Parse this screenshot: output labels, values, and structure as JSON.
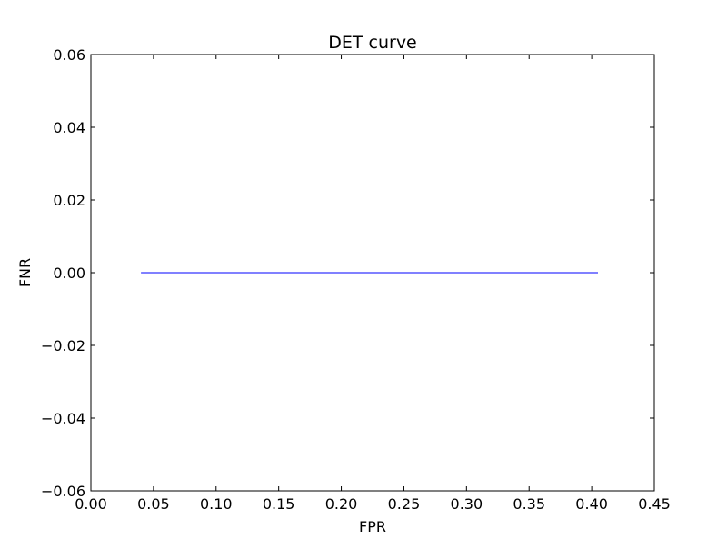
{
  "chart_data": {
    "type": "line",
    "title": "DET curve",
    "xlabel": "FPR",
    "ylabel": "FNR",
    "xlim": [
      0.0,
      0.45
    ],
    "ylim": [
      -0.06,
      0.06
    ],
    "xticks": [
      0.0,
      0.05,
      0.1,
      0.15,
      0.2,
      0.25,
      0.3,
      0.35,
      0.4,
      0.45
    ],
    "yticks": [
      -0.06,
      -0.04,
      -0.02,
      0.0,
      0.02,
      0.04,
      0.06
    ],
    "xtick_labels": [
      "0.00",
      "0.05",
      "0.10",
      "0.15",
      "0.20",
      "0.25",
      "0.30",
      "0.35",
      "0.40",
      "0.45"
    ],
    "ytick_labels": [
      "−0.06",
      "−0.04",
      "−0.02",
      "0.00",
      "0.02",
      "0.04",
      "0.06"
    ],
    "grid": false,
    "series": [
      {
        "color": "#0000ff",
        "x": [
          0.04,
          0.405
        ],
        "y": [
          0.0,
          0.0
        ]
      }
    ]
  }
}
